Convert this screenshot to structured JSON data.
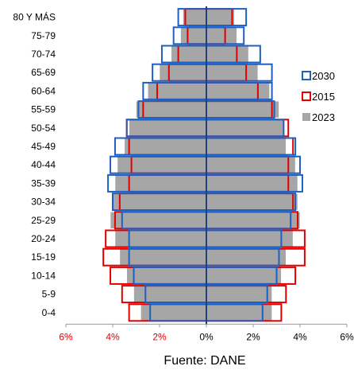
{
  "chart_data": {
    "type": "bar",
    "subtype": "population-pyramid",
    "categories": [
      "80 Y MÁS",
      "75-79",
      "70-74",
      "65-69",
      "60-64",
      "55-59",
      "50-54",
      "45-49",
      "40-44",
      "35-39",
      "30-34",
      "25-29",
      "20-24",
      "15-19",
      "10-14",
      "5-9",
      "0-4"
    ],
    "series": [
      {
        "name": "2030",
        "color": "#1f5fbf",
        "style": "outline",
        "left": [
          1.2,
          1.4,
          1.9,
          2.3,
          2.7,
          2.9,
          3.4,
          3.9,
          4.1,
          4.2,
          4.0,
          3.6,
          3.3,
          3.3,
          3.1,
          2.6,
          2.4
        ],
        "right": [
          1.7,
          1.6,
          2.3,
          2.8,
          2.8,
          2.9,
          3.3,
          3.8,
          4.0,
          4.1,
          3.8,
          3.6,
          3.2,
          3.1,
          3.0,
          2.6,
          2.4
        ]
      },
      {
        "name": "2015",
        "color": "#e00000",
        "style": "outline",
        "left": [
          0.9,
          0.8,
          1.2,
          1.6,
          2.1,
          2.7,
          3.4,
          3.3,
          3.2,
          3.3,
          3.7,
          3.9,
          4.3,
          4.4,
          4.1,
          3.6,
          3.3
        ],
        "right": [
          1.1,
          0.8,
          1.3,
          1.7,
          2.2,
          2.8,
          3.5,
          3.7,
          3.5,
          3.5,
          3.7,
          3.9,
          4.2,
          4.2,
          3.8,
          3.4,
          3.2
        ]
      },
      {
        "name": "2023",
        "color": "#a6a6a6",
        "style": "filled",
        "left": [
          1.0,
          1.1,
          1.5,
          2.0,
          2.5,
          3.0,
          3.3,
          3.5,
          3.8,
          3.9,
          4.0,
          4.1,
          3.9,
          3.7,
          3.4,
          3.1,
          2.8
        ],
        "right": [
          1.2,
          1.3,
          1.8,
          2.2,
          2.7,
          3.1,
          3.3,
          3.4,
          3.8,
          3.9,
          3.9,
          4.0,
          3.7,
          3.4,
          3.2,
          2.8,
          2.8
        ]
      }
    ],
    "xlim": [
      -6,
      6
    ],
    "xticks": [
      "6%",
      "4%",
      "2%",
      "0%",
      "2%",
      "4%",
      "6%"
    ],
    "xtick_colors": [
      "#e00000",
      "#e00000",
      "#e00000",
      "#000000",
      "#000000",
      "#000000",
      "#000000"
    ],
    "legend_placement": "right",
    "grid": false,
    "source": "Fuente: DANE"
  }
}
